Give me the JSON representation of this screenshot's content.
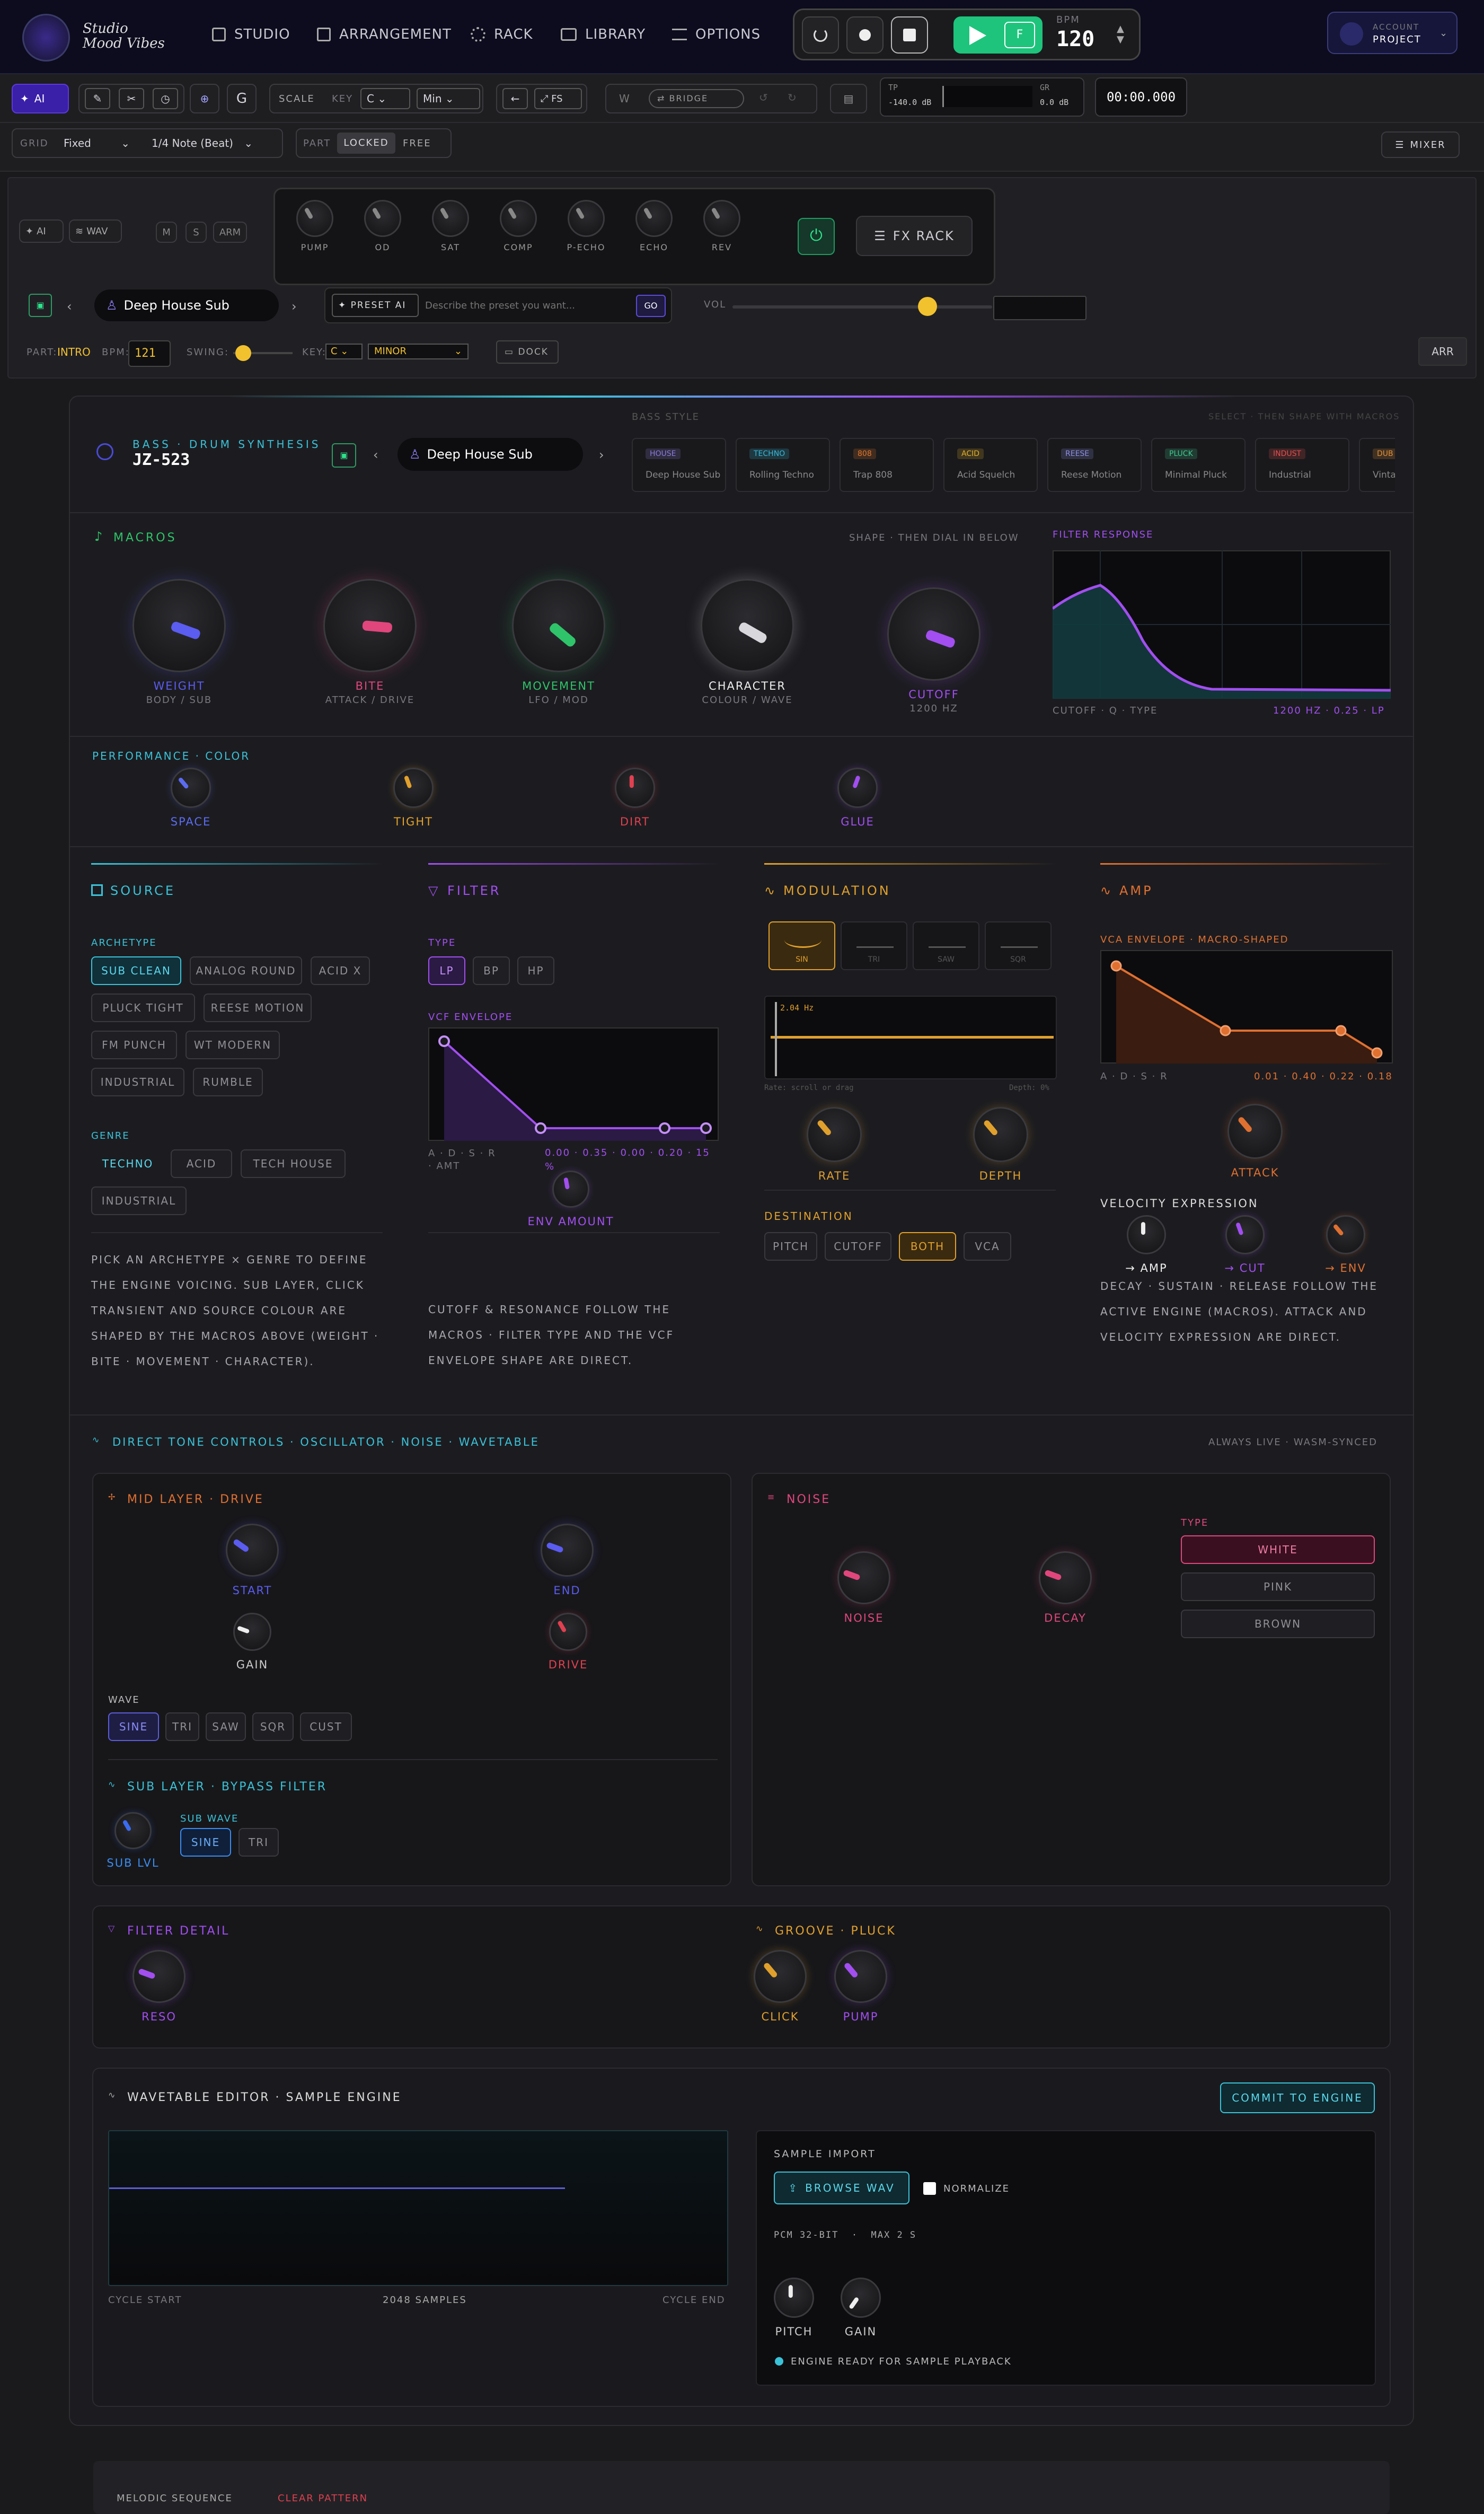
{
  "header": {
    "logo": "Studio Mood Vibes",
    "nav": [
      {
        "label": "STUDIO",
        "icon": "grid-icon"
      },
      {
        "label": "ARRANGEMENT",
        "icon": "table-icon"
      },
      {
        "label": "RACK",
        "icon": "gear-icon"
      },
      {
        "label": "LIBRARY",
        "icon": "stack-icon"
      },
      {
        "label": "OPTIONS",
        "icon": "sliders-icon"
      }
    ],
    "bpm_label": "BPM",
    "bpm": "120",
    "f_label": "F",
    "account_label": "ACCOUNT",
    "account_value": "PROJECT"
  },
  "toolbar": {
    "ai": "AI",
    "g": "G",
    "scale": "SCALE",
    "key_label": "KEY",
    "key": "C",
    "mode": "Min",
    "fs": "FS",
    "w": "W",
    "bridge": "BRIDGE",
    "tp_label": "TP",
    "tp_value": "-140.0 dB",
    "gr_label": "GR",
    "gr_value": "0.0 dB",
    "time": "00:00.000"
  },
  "toolbar2": {
    "grid_label": "GRID",
    "grid_value": "Fixed",
    "note": "1/4 Note (Beat)",
    "part_label": "PART",
    "locked": "LOCKED",
    "free": "FREE",
    "mixer": "MIXER"
  },
  "track": {
    "ai": "AI",
    "wav": "WAV",
    "m": "M",
    "s": "S",
    "arm": "ARM",
    "fx": [
      "PUMP",
      "OD",
      "SAT",
      "COMP",
      "P-ECHO",
      "ECHO",
      "REV"
    ],
    "fx_rack": "FX RACK",
    "preset_name": "Deep House Sub",
    "preset_ai": "PRESET AI",
    "preset_placeholder": "Describe the preset you want...",
    "go": "GO",
    "vol": "VOL",
    "vol_level": 0.75,
    "part_label": "PART:",
    "part_value": "INTRO",
    "bpm_label": "BPM:",
    "bpm_value": "121",
    "swing_label": "SWING:",
    "key_label": "KEY:",
    "key_value": "C",
    "minor": "MINOR",
    "dock": "DOCK",
    "arr": "ARR"
  },
  "synth": {
    "kind": "BASS · DRUM SYNTHESIS",
    "model": "JZ-523",
    "preset": "Deep House Sub",
    "bass_style_label": "BASS STYLE",
    "bass_style_hint": "SELECT · THEN SHAPE WITH MACROS",
    "styles": [
      {
        "tag": "HOUSE",
        "name": "Deep House Sub",
        "color": "#8a7cd8"
      },
      {
        "tag": "TECHNO",
        "name": "Rolling Techno",
        "color": "#38b7d8"
      },
      {
        "tag": "808",
        "name": "Trap 808",
        "color": "#e0782f"
      },
      {
        "tag": "ACID",
        "name": "Acid Squelch",
        "color": "#e2b12c"
      },
      {
        "tag": "REESE",
        "name": "Reese Motion",
        "color": "#8e8fe0"
      },
      {
        "tag": "PLUCK",
        "name": "Minimal Pluck",
        "color": "#3fc890"
      },
      {
        "tag": "INDUST",
        "name": "Industrial",
        "color": "#e05050"
      },
      {
        "tag": "DUB",
        "name": "Vinta",
        "color": "#e0903a"
      }
    ]
  },
  "macros": {
    "title": "MACROS",
    "hint": "SHAPE · THEN DIAL IN BELOW",
    "knobs": [
      {
        "label": "WEIGHT",
        "sub": "BODY / SUB",
        "color": "#5b5cf0"
      },
      {
        "label": "BITE",
        "sub": "ATTACK / DRIVE",
        "color": "#e0467c"
      },
      {
        "label": "MOVEMENT",
        "sub": "LFO / MOD",
        "color": "#2fc46a"
      },
      {
        "label": "CHARACTER",
        "sub": "COLOUR / WAVE",
        "color": "#d8d8dc"
      },
      {
        "label": "CUTOFF",
        "sub": "1200 HZ",
        "color": "#a24ef0"
      }
    ],
    "filter_title": "FILTER RESPONSE",
    "filter_caption": "CUTOFF · Q · TYPE",
    "filter_value": "1200 HZ · 0.25 · LP"
  },
  "performance": {
    "title": "PERFORMANCE · COLOR",
    "knobs": [
      {
        "label": "SPACE",
        "color": "#5b6cf0"
      },
      {
        "label": "TIGHT",
        "color": "#e2a12c"
      },
      {
        "label": "DIRT",
        "color": "#e04050"
      },
      {
        "label": "GLUE",
        "color": "#a24ef0"
      }
    ]
  },
  "source": {
    "title": "SOURCE",
    "archetype_label": "ARCHETYPE",
    "archetypes": [
      "SUB CLEAN",
      "ANALOG ROUND",
      "ACID X",
      "PLUCK TIGHT",
      "REESE MOTION",
      "FM PUNCH",
      "WT MODERN",
      "INDUSTRIAL",
      "RUMBLE"
    ],
    "genre_label": "GENRE",
    "genres": [
      "TECHNO",
      "ACID",
      "TECH HOUSE",
      "INDUSTRIAL"
    ],
    "desc": "PICK AN ARCHETYPE × GENRE TO DEFINE THE ENGINE VOICING. SUB LAYER, CLICK TRANSIENT AND SOURCE COLOUR ARE SHAPED BY THE MACROS ABOVE (WEIGHT · BITE · MOVEMENT · CHARACTER)."
  },
  "filter": {
    "title": "FILTER",
    "type_label": "TYPE",
    "types": [
      "LP",
      "BP",
      "HP"
    ],
    "env_label": "VCF ENVELOPE",
    "adsr": "A · D · S · R · AMT",
    "values": "0.00 · 0.35 · 0.00 · 0.20 · 15",
    "pct": "%",
    "env_amount": "ENV AMOUNT",
    "desc": "CUTOFF & RESONANCE FOLLOW THE MACROS · FILTER TYPE AND THE VCF ENVELOPE SHAPE ARE DIRECT."
  },
  "modulation": {
    "title": "MODULATION",
    "shapes": [
      "SIN",
      "TRI",
      "SAW",
      "SQR"
    ],
    "rate_readout": "2.04 Hz",
    "hint_left": "Rate: scroll or drag",
    "hint_right": "Depth: 0%",
    "rate": "RATE",
    "depth": "DEPTH",
    "dest_label": "DESTINATION",
    "dests": [
      "PITCH",
      "CUTOFF",
      "BOTH",
      "VCA"
    ]
  },
  "amp": {
    "title": "AMP",
    "env_label": "VCA ENVELOPE · MACRO-SHAPED",
    "adsr": "A · D · S · R",
    "values": "0.01 · 0.40 · 0.22 · 0.18",
    "attack": "ATTACK",
    "vel_title": "VELOCITY EXPRESSION",
    "vel": [
      "→ AMP",
      "→ CUT",
      "→ ENV"
    ],
    "desc": "DECAY · SUSTAIN · RELEASE FOLLOW THE ACTIVE ENGINE (MACROS). ATTACK AND VELOCITY EXPRESSION ARE DIRECT."
  },
  "direct": {
    "title": "DIRECT TONE CONTROLS · OSCILLATOR · NOISE · WAVETABLE",
    "hint": "ALWAYS LIVE · WASM-SYNCED",
    "mid_title": "MID LAYER · DRIVE",
    "start": "START",
    "end": "END",
    "gain": "GAIN",
    "drive": "DRIVE",
    "wave_label": "WAVE",
    "waves": [
      "SINE",
      "TRI",
      "SAW",
      "SQR",
      "CUST"
    ],
    "sub_title": "SUB LAYER · BYPASS FILTER",
    "sub_lvl": "SUB LVL",
    "sub_wave_label": "SUB WAVE",
    "sub_waves": [
      "SINE",
      "TRI"
    ],
    "noise_title": "NOISE",
    "noise": "NOISE",
    "decay": "DECAY",
    "type_label": "TYPE",
    "noise_types": [
      "WHITE",
      "PINK",
      "BROWN"
    ]
  },
  "filter_detail": {
    "title": "FILTER DETAIL",
    "reso": "RESO",
    "groove_title": "GROOVE · PLUCK",
    "click": "CLICK",
    "pump": "PUMP"
  },
  "wavetable": {
    "title": "WAVETABLE EDITOR · SAMPLE ENGINE",
    "commit": "COMMIT TO ENGINE",
    "cycle_start": "CYCLE START",
    "samples": "2048 SAMPLES",
    "cycle_end": "CYCLE END",
    "import_label": "SAMPLE IMPORT",
    "browse": "BROWSE WAV",
    "normalize": "NORMALIZE",
    "format": "PCM 32-BIT  ·  MAX 2 S",
    "pitch": "PITCH",
    "gain": "GAIN",
    "status": "ENGINE READY FOR SAMPLE PLAYBACK"
  },
  "melodic": {
    "title": "MELODIC SEQUENCE",
    "clear": "CLEAR PATTERN"
  }
}
